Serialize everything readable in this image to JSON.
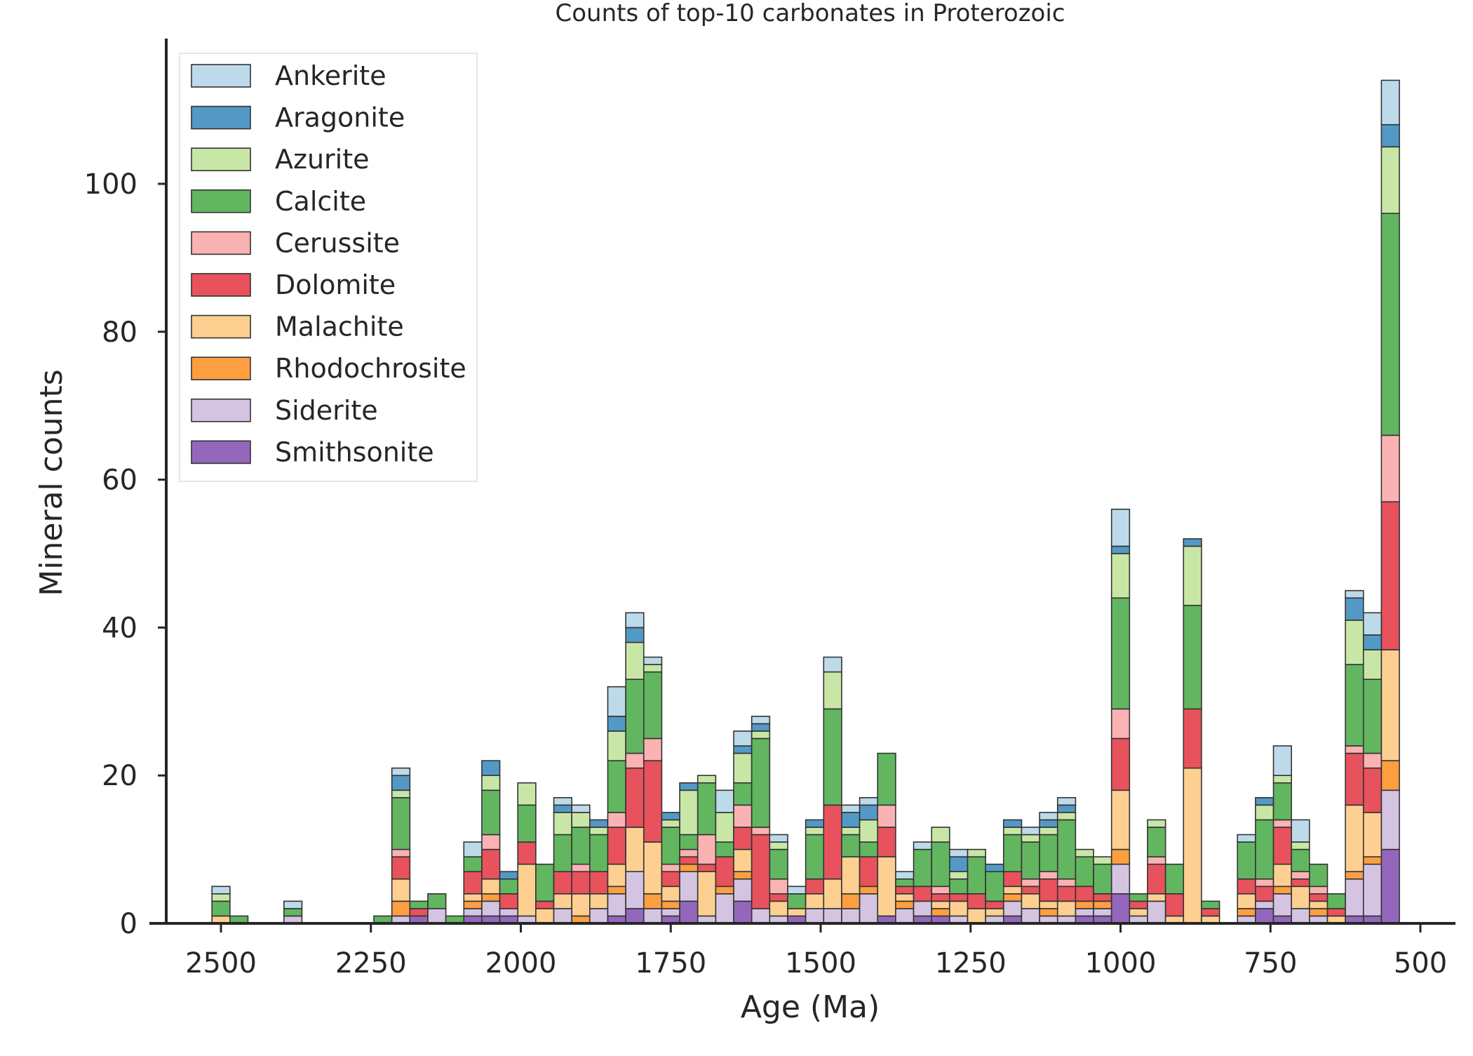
{
  "chart_data": {
    "type": "bar",
    "stacked": true,
    "title": "Counts of top-10 carbonates in Proterozoic",
    "xlabel": "Age (Ma)",
    "ylabel": "Mineral counts",
    "x_axis_reversed": true,
    "xlim": [
      2620,
      440
    ],
    "ylim": [
      0,
      120
    ],
    "bin_width_ma": 30,
    "xticks": [
      2500,
      2250,
      2000,
      1750,
      1500,
      1250,
      1000,
      750,
      500
    ],
    "yticks": [
      0,
      20,
      40,
      60,
      80,
      100
    ],
    "grid": false,
    "legend_placement": "top-left",
    "x": [
      2500,
      2470,
      2380,
      2230,
      2200,
      2170,
      2140,
      2110,
      2080,
      2050,
      2020,
      1990,
      1960,
      1930,
      1900,
      1870,
      1840,
      1810,
      1780,
      1750,
      1720,
      1690,
      1660,
      1630,
      1600,
      1570,
      1540,
      1510,
      1480,
      1450,
      1420,
      1390,
      1360,
      1330,
      1300,
      1270,
      1240,
      1210,
      1180,
      1150,
      1120,
      1090,
      1060,
      1030,
      1000,
      970,
      940,
      910,
      880,
      850,
      790,
      760,
      730,
      700,
      670,
      640,
      610,
      580,
      550
    ],
    "series": [
      {
        "name": "Smithsonite",
        "color": "#9467bd",
        "values": [
          0,
          0,
          0,
          0,
          0,
          1,
          0,
          0,
          1,
          1,
          1,
          0,
          0,
          0,
          0,
          0,
          1,
          2,
          0,
          1,
          3,
          0,
          0,
          3,
          0,
          0,
          1,
          0,
          0,
          0,
          0,
          1,
          0,
          1,
          1,
          0,
          0,
          0,
          1,
          0,
          0,
          0,
          1,
          1,
          4,
          0,
          0,
          0,
          0,
          0,
          0,
          2,
          1,
          0,
          0,
          0,
          1,
          1,
          10
        ]
      },
      {
        "name": "Siderite",
        "color": "#d4c4e2",
        "values": [
          0,
          0,
          1,
          0,
          1,
          0,
          2,
          0,
          1,
          2,
          1,
          1,
          0,
          2,
          0,
          2,
          3,
          5,
          2,
          1,
          4,
          1,
          4,
          3,
          2,
          1,
          0,
          2,
          2,
          2,
          4,
          0,
          2,
          2,
          0,
          1,
          0,
          1,
          2,
          2,
          1,
          1,
          1,
          1,
          4,
          1,
          3,
          0,
          0,
          0,
          1,
          1,
          3,
          2,
          1,
          0,
          5,
          7,
          8
        ]
      },
      {
        "name": "Rhodochrosite",
        "color": "#fd9f40",
        "values": [
          0,
          0,
          0,
          0,
          2,
          0,
          0,
          0,
          1,
          1,
          0,
          0,
          0,
          0,
          1,
          0,
          1,
          0,
          2,
          1,
          1,
          0,
          1,
          1,
          0,
          0,
          0,
          0,
          0,
          2,
          1,
          0,
          1,
          0,
          1,
          0,
          0,
          0,
          1,
          0,
          1,
          0,
          1,
          1,
          2,
          0,
          0,
          0,
          0,
          0,
          1,
          0,
          1,
          0,
          1,
          0,
          1,
          1,
          4
        ]
      },
      {
        "name": "Malachite",
        "color": "#fdd092",
        "values": [
          1,
          0,
          0,
          0,
          3,
          0,
          0,
          0,
          1,
          2,
          0,
          7,
          2,
          2,
          3,
          2,
          3,
          6,
          7,
          2,
          0,
          6,
          0,
          3,
          0,
          2,
          1,
          2,
          4,
          5,
          0,
          8,
          1,
          0,
          1,
          2,
          2,
          1,
          1,
          2,
          1,
          2,
          0,
          0,
          8,
          1,
          1,
          1,
          21,
          1,
          2,
          0,
          3,
          3,
          1,
          1,
          9,
          6,
          15
        ]
      },
      {
        "name": "Dolomite",
        "color": "#e8525c",
        "values": [
          0,
          0,
          0,
          0,
          3,
          1,
          0,
          0,
          3,
          4,
          2,
          3,
          1,
          3,
          3,
          3,
          5,
          8,
          11,
          2,
          1,
          1,
          4,
          3,
          10,
          1,
          0,
          2,
          10,
          0,
          4,
          4,
          1,
          2,
          1,
          1,
          2,
          1,
          2,
          1,
          3,
          2,
          2,
          1,
          7,
          1,
          4,
          3,
          8,
          1,
          2,
          2,
          5,
          1,
          1,
          1,
          7,
          6,
          20
        ]
      },
      {
        "name": "Cerussite",
        "color": "#fbb2b2",
        "values": [
          0,
          0,
          0,
          0,
          1,
          0,
          0,
          0,
          0,
          2,
          0,
          0,
          0,
          0,
          1,
          0,
          2,
          2,
          3,
          1,
          1,
          4,
          0,
          3,
          1,
          2,
          0,
          0,
          0,
          0,
          0,
          3,
          0,
          0,
          1,
          0,
          0,
          0,
          0,
          1,
          1,
          1,
          0,
          0,
          4,
          0,
          1,
          0,
          0,
          0,
          0,
          1,
          1,
          1,
          1,
          0,
          1,
          2,
          9
        ]
      },
      {
        "name": "Calcite",
        "color": "#62b660",
        "values": [
          2,
          1,
          1,
          1,
          7,
          1,
          2,
          1,
          2,
          6,
          2,
          5,
          5,
          5,
          5,
          5,
          7,
          10,
          9,
          5,
          2,
          7,
          2,
          3,
          12,
          4,
          2,
          6,
          13,
          3,
          2,
          7,
          1,
          5,
          6,
          2,
          5,
          4,
          5,
          5,
          5,
          8,
          4,
          4,
          15,
          1,
          4,
          4,
          14,
          1,
          5,
          8,
          5,
          3,
          3,
          2,
          11,
          10,
          30
        ]
      },
      {
        "name": "Azurite",
        "color": "#c8e7a6",
        "values": [
          1,
          0,
          0,
          0,
          1,
          0,
          0,
          0,
          0,
          2,
          0,
          3,
          0,
          3,
          2,
          1,
          4,
          5,
          1,
          1,
          6,
          1,
          4,
          4,
          1,
          1,
          0,
          1,
          5,
          1,
          3,
          0,
          0,
          0,
          2,
          1,
          1,
          0,
          1,
          1,
          1,
          1,
          1,
          1,
          6,
          0,
          1,
          0,
          8,
          0,
          0,
          2,
          1,
          1,
          0,
          0,
          6,
          4,
          9
        ]
      },
      {
        "name": "Aragonite",
        "color": "#5399c6",
        "values": [
          0,
          0,
          0,
          0,
          2,
          0,
          0,
          0,
          0,
          2,
          1,
          0,
          0,
          1,
          0,
          1,
          2,
          2,
          0,
          1,
          1,
          0,
          0,
          1,
          1,
          0,
          0,
          1,
          0,
          2,
          2,
          0,
          0,
          0,
          0,
          2,
          0,
          1,
          1,
          0,
          1,
          1,
          0,
          0,
          1,
          0,
          0,
          0,
          1,
          0,
          0,
          1,
          0,
          0,
          0,
          0,
          3,
          2,
          3
        ]
      },
      {
        "name": "Ankerite",
        "color": "#bcdaea",
        "values": [
          1,
          0,
          1,
          0,
          1,
          0,
          0,
          0,
          2,
          0,
          0,
          0,
          0,
          1,
          1,
          0,
          4,
          2,
          1,
          0,
          0,
          0,
          3,
          2,
          1,
          1,
          1,
          0,
          2,
          1,
          1,
          0,
          1,
          1,
          0,
          1,
          0,
          0,
          0,
          1,
          1,
          1,
          0,
          0,
          5,
          0,
          0,
          0,
          0,
          0,
          1,
          0,
          4,
          3,
          0,
          0,
          1,
          3,
          6
        ]
      }
    ],
    "legend_order": [
      "Ankerite",
      "Aragonite",
      "Azurite",
      "Calcite",
      "Cerussite",
      "Dolomite",
      "Malachite",
      "Rhodochrosite",
      "Siderite",
      "Smithsonite"
    ]
  }
}
